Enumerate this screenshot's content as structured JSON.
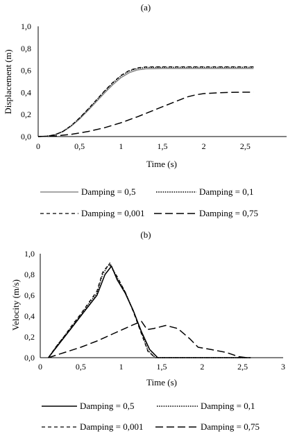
{
  "chart_data": [
    {
      "type": "line",
      "panel_label": "(a)",
      "xlabel": "Time (s)",
      "ylabel": "Displacement (m)",
      "xlim": [
        0,
        3
      ],
      "ylim": [
        0,
        1.0
      ],
      "x_ticks": [
        "0",
        "0,5",
        "1",
        "1,5",
        "2",
        "2,5"
      ],
      "y_ticks": [
        "0,0",
        "0,2",
        "0,4",
        "0,6",
        "0,8",
        "1,0"
      ],
      "x_tick_values": [
        0,
        0.5,
        1,
        1.5,
        2,
        2.5
      ],
      "y_tick_values": [
        0,
        0.2,
        0.4,
        0.6,
        0.8,
        1.0
      ],
      "grid": false,
      "legend_position": "bottom",
      "series": [
        {
          "name": "Damping = 0,5",
          "color": "#888888",
          "style": "solid",
          "points": [
            [
              0,
              0
            ],
            [
              0.1,
              0.003
            ],
            [
              0.2,
              0.015
            ],
            [
              0.3,
              0.045
            ],
            [
              0.4,
              0.095
            ],
            [
              0.5,
              0.16
            ],
            [
              0.6,
              0.235
            ],
            [
              0.7,
              0.315
            ],
            [
              0.8,
              0.395
            ],
            [
              0.9,
              0.47
            ],
            [
              1.0,
              0.535
            ],
            [
              1.1,
              0.58
            ],
            [
              1.2,
              0.605
            ],
            [
              1.3,
              0.615
            ],
            [
              1.5,
              0.618
            ],
            [
              2.0,
              0.618
            ],
            [
              2.6,
              0.618
            ]
          ]
        },
        {
          "name": "Damping = 0,1",
          "color": "#000000",
          "style": "dotted",
          "points": [
            [
              0,
              0
            ],
            [
              0.1,
              0.003
            ],
            [
              0.2,
              0.016
            ],
            [
              0.3,
              0.047
            ],
            [
              0.4,
              0.1
            ],
            [
              0.5,
              0.168
            ],
            [
              0.6,
              0.245
            ],
            [
              0.7,
              0.327
            ],
            [
              0.8,
              0.41
            ],
            [
              0.9,
              0.485
            ],
            [
              1.0,
              0.55
            ],
            [
              1.1,
              0.595
            ],
            [
              1.2,
              0.618
            ],
            [
              1.3,
              0.627
            ],
            [
              1.5,
              0.628
            ],
            [
              2.0,
              0.628
            ],
            [
              2.6,
              0.628
            ]
          ]
        },
        {
          "name": "Damping = 0,001",
          "color": "#000000",
          "style": "dashed",
          "points": [
            [
              0,
              0
            ],
            [
              0.1,
              0.003
            ],
            [
              0.2,
              0.016
            ],
            [
              0.3,
              0.047
            ],
            [
              0.4,
              0.1
            ],
            [
              0.5,
              0.17
            ],
            [
              0.6,
              0.248
            ],
            [
              0.7,
              0.33
            ],
            [
              0.8,
              0.413
            ],
            [
              0.9,
              0.49
            ],
            [
              1.0,
              0.555
            ],
            [
              1.1,
              0.6
            ],
            [
              1.2,
              0.623
            ],
            [
              1.3,
              0.632
            ],
            [
              1.5,
              0.633
            ],
            [
              2.0,
              0.633
            ],
            [
              2.6,
              0.633
            ]
          ]
        },
        {
          "name": "Damping = 0,75",
          "color": "#000000",
          "style": "longdash",
          "points": [
            [
              0,
              0
            ],
            [
              0.2,
              0.005
            ],
            [
              0.4,
              0.02
            ],
            [
              0.6,
              0.045
            ],
            [
              0.8,
              0.08
            ],
            [
              1.0,
              0.125
            ],
            [
              1.2,
              0.18
            ],
            [
              1.4,
              0.24
            ],
            [
              1.6,
              0.3
            ],
            [
              1.8,
              0.36
            ],
            [
              1.9,
              0.378
            ],
            [
              2.0,
              0.39
            ],
            [
              2.2,
              0.398
            ],
            [
              2.4,
              0.402
            ],
            [
              2.6,
              0.403
            ]
          ]
        }
      ]
    },
    {
      "type": "line",
      "panel_label": "(b)",
      "xlabel": "Time (s)",
      "ylabel": "Velocity (m/s)",
      "xlim": [
        0,
        3
      ],
      "ylim": [
        0,
        1.0
      ],
      "x_ticks": [
        "0",
        "0,5",
        "1",
        "1,5",
        "2",
        "2,5",
        "3"
      ],
      "y_ticks": [
        "0,0",
        "0,2",
        "0,4",
        "0,6",
        "0,8",
        "1,0"
      ],
      "x_tick_values": [
        0,
        0.5,
        1,
        1.5,
        2,
        2.5,
        3
      ],
      "y_tick_values": [
        0,
        0.2,
        0.4,
        0.6,
        0.8,
        1.0
      ],
      "grid": false,
      "legend_position": "bottom",
      "series": [
        {
          "name": "Damping = 0,5",
          "color": "#000000",
          "style": "solid",
          "points": [
            [
              0.1,
              0
            ],
            [
              0.2,
              0.1
            ],
            [
              0.3,
              0.2
            ],
            [
              0.4,
              0.3
            ],
            [
              0.5,
              0.4
            ],
            [
              0.6,
              0.5
            ],
            [
              0.7,
              0.6
            ],
            [
              0.8,
              0.8
            ],
            [
              0.88,
              0.88
            ],
            [
              0.95,
              0.75
            ],
            [
              1.05,
              0.62
            ],
            [
              1.15,
              0.45
            ],
            [
              1.25,
              0.25
            ],
            [
              1.35,
              0.08
            ],
            [
              1.45,
              0
            ],
            [
              2.6,
              0
            ]
          ]
        },
        {
          "name": "Damping = 0,1",
          "color": "#000000",
          "style": "dotted",
          "points": [
            [
              0.1,
              0
            ],
            [
              0.2,
              0.11
            ],
            [
              0.3,
              0.21
            ],
            [
              0.4,
              0.31
            ],
            [
              0.5,
              0.41
            ],
            [
              0.6,
              0.52
            ],
            [
              0.7,
              0.62
            ],
            [
              0.77,
              0.8
            ],
            [
              0.86,
              0.91
            ],
            [
              0.95,
              0.77
            ],
            [
              1.05,
              0.63
            ],
            [
              1.15,
              0.45
            ],
            [
              1.25,
              0.24
            ],
            [
              1.33,
              0.07
            ],
            [
              1.42,
              0
            ],
            [
              2.6,
              0
            ]
          ]
        },
        {
          "name": "Damping = 0,001",
          "color": "#000000",
          "style": "dashed",
          "points": [
            [
              0.1,
              0
            ],
            [
              0.2,
              0.11
            ],
            [
              0.3,
              0.21
            ],
            [
              0.4,
              0.32
            ],
            [
              0.5,
              0.42
            ],
            [
              0.6,
              0.53
            ],
            [
              0.7,
              0.64
            ],
            [
              0.77,
              0.82
            ],
            [
              0.85,
              0.9
            ],
            [
              0.95,
              0.78
            ],
            [
              1.05,
              0.63
            ],
            [
              1.15,
              0.44
            ],
            [
              1.25,
              0.23
            ],
            [
              1.33,
              0.06
            ],
            [
              1.42,
              0
            ],
            [
              2.6,
              0
            ]
          ]
        },
        {
          "name": "Damping = 0,75",
          "color": "#000000",
          "style": "longdash",
          "points": [
            [
              0.1,
              0
            ],
            [
              0.3,
              0.05
            ],
            [
              0.5,
              0.1
            ],
            [
              0.7,
              0.16
            ],
            [
              0.9,
              0.23
            ],
            [
              1.1,
              0.3
            ],
            [
              1.25,
              0.35
            ],
            [
              1.32,
              0.27
            ],
            [
              1.4,
              0.28
            ],
            [
              1.55,
              0.31
            ],
            [
              1.7,
              0.28
            ],
            [
              1.85,
              0.18
            ],
            [
              1.95,
              0.1
            ],
            [
              2.1,
              0.08
            ],
            [
              2.3,
              0.05
            ],
            [
              2.45,
              0.01
            ],
            [
              2.55,
              0
            ]
          ]
        }
      ]
    }
  ]
}
